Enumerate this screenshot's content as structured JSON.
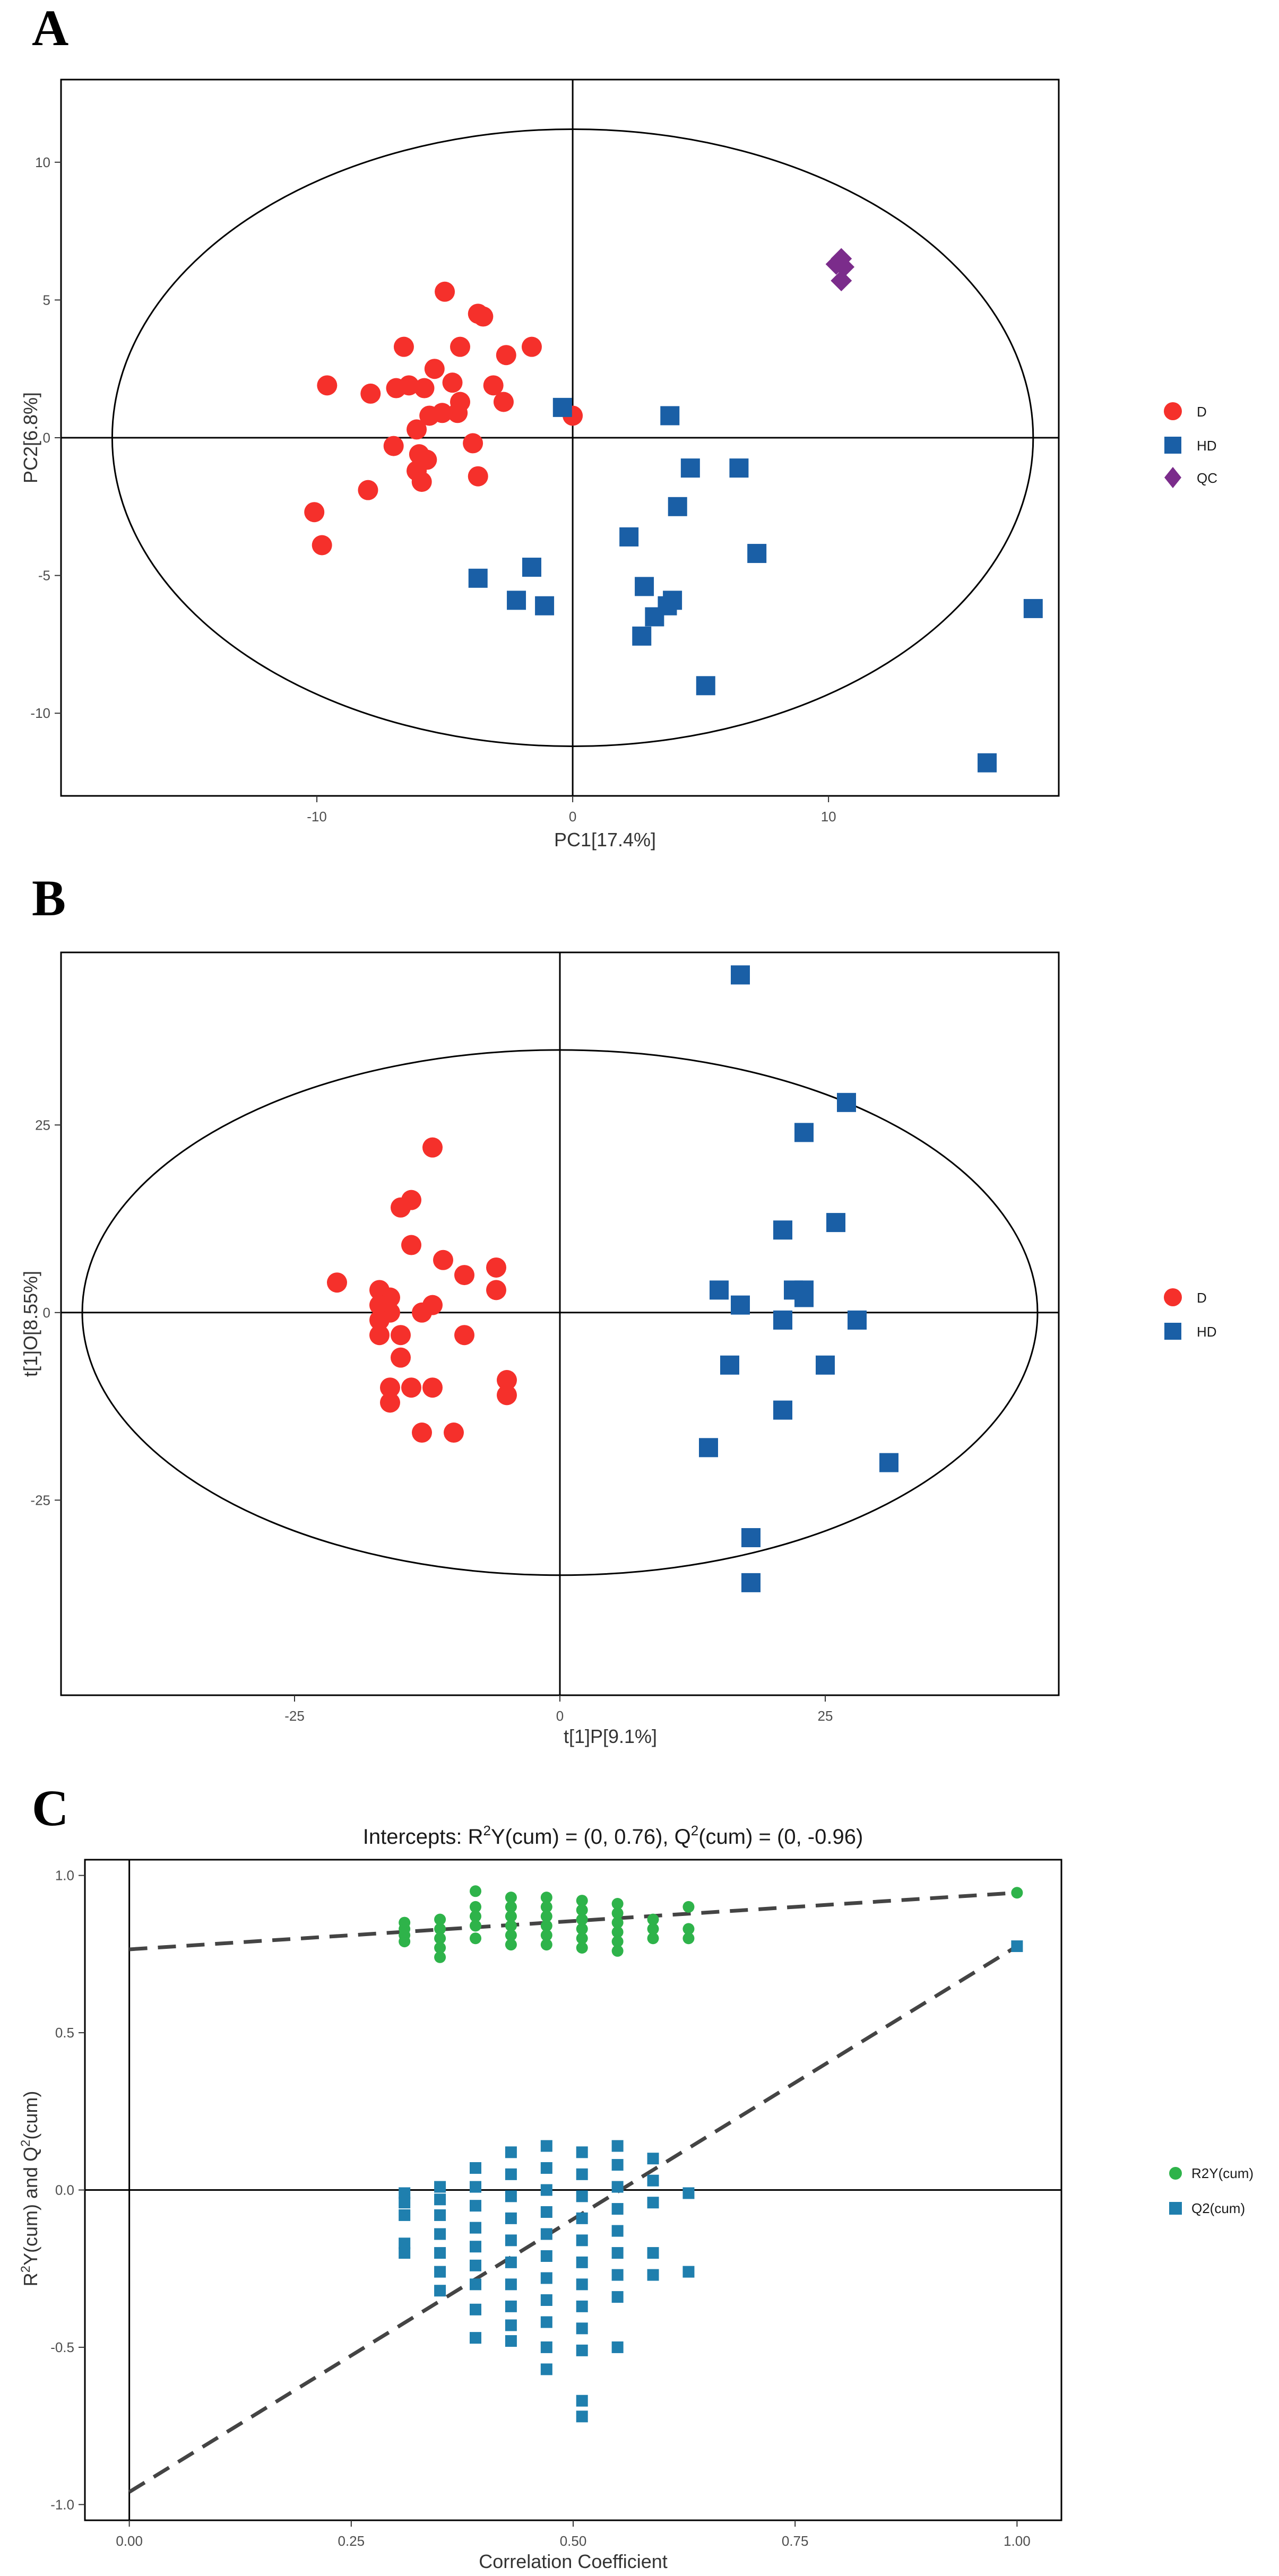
{
  "chart_data": [
    {
      "panel": "A",
      "type": "scatter",
      "title": "",
      "xlabel": "PC1[17.4%]",
      "ylabel": "PC2[6.8%]",
      "xlim": [
        -20,
        19
      ],
      "ylim": [
        -13,
        13
      ],
      "xticks": [
        -10,
        0,
        10
      ],
      "xtick_labels": [
        "-10",
        "0",
        "10"
      ],
      "yticks": [
        -10,
        -5,
        0,
        5,
        10
      ],
      "ytick_labels": [
        "-10",
        "-5",
        "0",
        "5",
        "10"
      ],
      "grid": false,
      "reference_lines": {
        "x": 0,
        "y": 0
      },
      "ellipse": {
        "cx": 0,
        "cy": 0,
        "rx": 18,
        "ry": 11.2
      },
      "legend_position": "right",
      "series": [
        {
          "name": "D",
          "color": "#f5302b",
          "marker": "circle",
          "points": [
            [
              -5,
              5.3
            ],
            [
              -3.7,
              4.5
            ],
            [
              -3.5,
              4.4
            ],
            [
              -1.6,
              3.3
            ],
            [
              -2.6,
              3.0
            ],
            [
              -6.6,
              3.3
            ],
            [
              -4.4,
              3.3
            ],
            [
              -9.6,
              1.9
            ],
            [
              -7.9,
              1.6
            ],
            [
              -6.9,
              1.8
            ],
            [
              -6.4,
              1.9
            ],
            [
              -5.8,
              1.8
            ],
            [
              -5.4,
              2.5
            ],
            [
              -4.7,
              2.0
            ],
            [
              -3.1,
              1.9
            ],
            [
              -2.7,
              1.3
            ],
            [
              -4.4,
              1.3
            ],
            [
              -4.5,
              0.9
            ],
            [
              -5.1,
              0.9
            ],
            [
              -5.6,
              0.8
            ],
            [
              -6.1,
              0.3
            ],
            [
              -7,
              -0.3
            ],
            [
              -6,
              -0.6
            ],
            [
              -5.7,
              -0.8
            ],
            [
              -3.9,
              -0.2
            ],
            [
              -6.1,
              -1.2
            ],
            [
              -5.9,
              -1.6
            ],
            [
              -3.7,
              -1.4
            ],
            [
              -8,
              -1.9
            ],
            [
              -10.1,
              -2.7
            ],
            [
              -9.8,
              -3.9
            ],
            [
              0,
              0.8
            ]
          ]
        },
        {
          "name": "HD",
          "color": "#1a5fa6",
          "marker": "square",
          "points": [
            [
              -0.4,
              1.1
            ],
            [
              3.8,
              0.8
            ],
            [
              4.6,
              -1.1
            ],
            [
              6.5,
              -1.1
            ],
            [
              4.1,
              -2.5
            ],
            [
              2.2,
              -3.6
            ],
            [
              7.2,
              -4.2
            ],
            [
              2.8,
              -5.4
            ],
            [
              3.9,
              -5.9
            ],
            [
              3.7,
              -6.1
            ],
            [
              3.2,
              -6.5
            ],
            [
              2.7,
              -7.2
            ],
            [
              -3.7,
              -5.1
            ],
            [
              -1.6,
              -4.7
            ],
            [
              -2.2,
              -5.9
            ],
            [
              -1.1,
              -6.1
            ],
            [
              5.2,
              -9.0
            ],
            [
              18,
              -6.2
            ],
            [
              16.2,
              -11.8
            ]
          ]
        },
        {
          "name": "QC",
          "color": "#7b2c8b",
          "marker": "diamond",
          "points": [
            [
              10.5,
              6.5
            ],
            [
              10.3,
              6.3
            ],
            [
              10.6,
              6.2
            ],
            [
              10.5,
              5.7
            ]
          ]
        }
      ]
    },
    {
      "panel": "B",
      "type": "scatter",
      "title": "",
      "xlabel": "t[1]P[9.1%]",
      "ylabel": "t[1]O[8.55%]",
      "xlim": [
        -47,
        47
      ],
      "ylim": [
        -51,
        48
      ],
      "xticks": [
        -25,
        0,
        25
      ],
      "xtick_labels": [
        "-25",
        "0",
        "25"
      ],
      "yticks": [
        -25,
        0,
        25
      ],
      "ytick_labels": [
        "-25",
        "0",
        "25"
      ],
      "grid": false,
      "reference_lines": {
        "x": 0,
        "y": 0
      },
      "ellipse": {
        "cx": 0,
        "cy": 0,
        "rx": 45,
        "ry": 35
      },
      "legend_position": "right",
      "series": [
        {
          "name": "D",
          "color": "#f5302b",
          "marker": "circle",
          "points": [
            [
              -12,
              22
            ],
            [
              -14,
              15
            ],
            [
              -15,
              14
            ],
            [
              -14,
              9
            ],
            [
              -21,
              4
            ],
            [
              -17,
              3
            ],
            [
              -16,
              2
            ],
            [
              -17,
              1
            ],
            [
              -16,
              0
            ],
            [
              -11,
              7
            ],
            [
              -13,
              0
            ],
            [
              -12,
              1
            ],
            [
              -9,
              5
            ],
            [
              -6,
              6
            ],
            [
              -6,
              3
            ],
            [
              -17,
              -1
            ],
            [
              -17,
              -3
            ],
            [
              -15,
              -3
            ],
            [
              -9,
              -3
            ],
            [
              -15,
              -6
            ],
            [
              -16,
              -10
            ],
            [
              -14,
              -10
            ],
            [
              -12,
              -10
            ],
            [
              -16,
              -12
            ],
            [
              -5,
              -9
            ],
            [
              -5,
              -11
            ],
            [
              -13,
              -16
            ],
            [
              -10,
              -16
            ]
          ]
        },
        {
          "name": "HD",
          "color": "#1a5fa6",
          "marker": "square",
          "points": [
            [
              17,
              45
            ],
            [
              27,
              28
            ],
            [
              23,
              24
            ],
            [
              21,
              11
            ],
            [
              26,
              12
            ],
            [
              15,
              3
            ],
            [
              17,
              1
            ],
            [
              22,
              3
            ],
            [
              23,
              3
            ],
            [
              23,
              2
            ],
            [
              21,
              -1
            ],
            [
              28,
              -1
            ],
            [
              16,
              -7
            ],
            [
              25,
              -7
            ],
            [
              21,
              -13
            ],
            [
              14,
              -18
            ],
            [
              31,
              -20
            ],
            [
              18,
              -30
            ],
            [
              18,
              -36
            ]
          ]
        }
      ]
    },
    {
      "panel": "C",
      "type": "scatter",
      "title": "Intercepts: R",
      "title_sup1": "2",
      "title_part2": "Y(cum) = (0, 0.76), Q",
      "title_sup2": "2",
      "title_part3": "(cum) = (0, -0.96)",
      "xlabel": "Correlation Coefficient",
      "ylabel_parts": [
        "R",
        "2",
        "Y(cum) and Q",
        "2",
        "(cum)"
      ],
      "xlim": [
        -0.05,
        1.05
      ],
      "ylim": [
        -1.05,
        1.05
      ],
      "xticks": [
        0,
        0.25,
        0.5,
        0.75,
        1
      ],
      "xtick_labels": [
        "0.00",
        "0.25",
        "0.50",
        "0.75",
        "1.00"
      ],
      "yticks": [
        -1,
        -0.5,
        0,
        0.5,
        1
      ],
      "ytick_labels": [
        "-1.0",
        "-0.5",
        "0.0",
        "0.5",
        "1.0"
      ],
      "grid": false,
      "reference_lines": {
        "x": 0,
        "y": 0
      },
      "legend_position": "right",
      "regression_lines": [
        {
          "name": "R2Y(cum)",
          "from": [
            0,
            0.765
          ],
          "to": [
            1,
            0.945
          ]
        },
        {
          "name": "Q2(cum)",
          "from": [
            0,
            -0.96
          ],
          "to": [
            1,
            0.775
          ]
        }
      ],
      "series": [
        {
          "name": "R2Y(cum)",
          "color": "#2eb34a",
          "marker": "circle",
          "points": [
            [
              0.31,
              0.85
            ],
            [
              0.31,
              0.83
            ],
            [
              0.31,
              0.81
            ],
            [
              0.31,
              0.79
            ],
            [
              0.35,
              0.86
            ],
            [
              0.35,
              0.83
            ],
            [
              0.35,
              0.8
            ],
            [
              0.35,
              0.77
            ],
            [
              0.35,
              0.74
            ],
            [
              0.39,
              0.95
            ],
            [
              0.39,
              0.9
            ],
            [
              0.39,
              0.87
            ],
            [
              0.39,
              0.84
            ],
            [
              0.39,
              0.8
            ],
            [
              0.43,
              0.93
            ],
            [
              0.43,
              0.9
            ],
            [
              0.43,
              0.87
            ],
            [
              0.43,
              0.84
            ],
            [
              0.43,
              0.81
            ],
            [
              0.43,
              0.78
            ],
            [
              0.47,
              0.93
            ],
            [
              0.47,
              0.9
            ],
            [
              0.47,
              0.87
            ],
            [
              0.47,
              0.84
            ],
            [
              0.47,
              0.81
            ],
            [
              0.47,
              0.78
            ],
            [
              0.51,
              0.92
            ],
            [
              0.51,
              0.89
            ],
            [
              0.51,
              0.86
            ],
            [
              0.51,
              0.83
            ],
            [
              0.51,
              0.8
            ],
            [
              0.51,
              0.77
            ],
            [
              0.55,
              0.91
            ],
            [
              0.55,
              0.88
            ],
            [
              0.55,
              0.85
            ],
            [
              0.55,
              0.82
            ],
            [
              0.55,
              0.79
            ],
            [
              0.55,
              0.76
            ],
            [
              0.59,
              0.86
            ],
            [
              0.59,
              0.83
            ],
            [
              0.59,
              0.8
            ],
            [
              0.63,
              0.9
            ],
            [
              0.63,
              0.83
            ],
            [
              0.63,
              0.8
            ],
            [
              1.0,
              0.945
            ]
          ]
        },
        {
          "name": "Q2(cum)",
          "color": "#1f7fae",
          "marker": "square",
          "points": [
            [
              0.31,
              -0.01
            ],
            [
              0.31,
              -0.04
            ],
            [
              0.31,
              -0.08
            ],
            [
              0.31,
              -0.17
            ],
            [
              0.31,
              -0.2
            ],
            [
              0.35,
              0.01
            ],
            [
              0.35,
              -0.03
            ],
            [
              0.35,
              -0.08
            ],
            [
              0.35,
              -0.14
            ],
            [
              0.35,
              -0.2
            ],
            [
              0.35,
              -0.26
            ],
            [
              0.35,
              -0.32
            ],
            [
              0.39,
              0.07
            ],
            [
              0.39,
              0.01
            ],
            [
              0.39,
              -0.05
            ],
            [
              0.39,
              -0.12
            ],
            [
              0.39,
              -0.18
            ],
            [
              0.39,
              -0.24
            ],
            [
              0.39,
              -0.3
            ],
            [
              0.39,
              -0.38
            ],
            [
              0.39,
              -0.47
            ],
            [
              0.43,
              0.12
            ],
            [
              0.43,
              0.05
            ],
            [
              0.43,
              -0.02
            ],
            [
              0.43,
              -0.09
            ],
            [
              0.43,
              -0.16
            ],
            [
              0.43,
              -0.23
            ],
            [
              0.43,
              -0.3
            ],
            [
              0.43,
              -0.37
            ],
            [
              0.43,
              -0.43
            ],
            [
              0.43,
              -0.48
            ],
            [
              0.47,
              0.14
            ],
            [
              0.47,
              0.07
            ],
            [
              0.47,
              0.0
            ],
            [
              0.47,
              -0.07
            ],
            [
              0.47,
              -0.14
            ],
            [
              0.47,
              -0.21
            ],
            [
              0.47,
              -0.28
            ],
            [
              0.47,
              -0.35
            ],
            [
              0.47,
              -0.42
            ],
            [
              0.47,
              -0.5
            ],
            [
              0.47,
              -0.57
            ],
            [
              0.51,
              0.12
            ],
            [
              0.51,
              0.05
            ],
            [
              0.51,
              -0.02
            ],
            [
              0.51,
              -0.09
            ],
            [
              0.51,
              -0.16
            ],
            [
              0.51,
              -0.23
            ],
            [
              0.51,
              -0.3
            ],
            [
              0.51,
              -0.37
            ],
            [
              0.51,
              -0.44
            ],
            [
              0.51,
              -0.51
            ],
            [
              0.51,
              -0.67
            ],
            [
              0.51,
              -0.72
            ],
            [
              0.55,
              0.14
            ],
            [
              0.55,
              0.08
            ],
            [
              0.55,
              0.01
            ],
            [
              0.55,
              -0.06
            ],
            [
              0.55,
              -0.13
            ],
            [
              0.55,
              -0.2
            ],
            [
              0.55,
              -0.27
            ],
            [
              0.55,
              -0.34
            ],
            [
              0.55,
              -0.5
            ],
            [
              0.59,
              0.1
            ],
            [
              0.59,
              0.03
            ],
            [
              0.59,
              -0.04
            ],
            [
              0.59,
              -0.2
            ],
            [
              0.59,
              -0.27
            ],
            [
              0.63,
              -0.01
            ],
            [
              0.63,
              -0.26
            ],
            [
              1.0,
              0.775
            ]
          ]
        }
      ]
    }
  ]
}
